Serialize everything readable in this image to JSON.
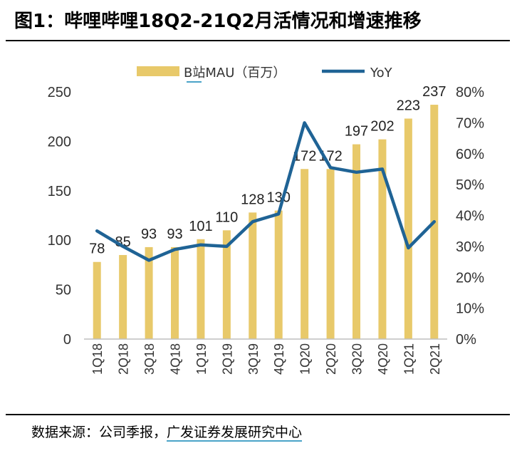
{
  "figure_title": "图1：哔哩哔哩18Q2-21Q2月活情况和增速推移",
  "source": {
    "prefix": "数据来源：公司季报，",
    "company": "广发证券发展研究中心"
  },
  "chart_data": {
    "type": "bar",
    "categories": [
      "1Q18",
      "2Q18",
      "3Q18",
      "4Q18",
      "1Q19",
      "2Q19",
      "3Q19",
      "4Q19",
      "1Q20",
      "2Q20",
      "3Q20",
      "4Q20",
      "1Q21",
      "2Q21"
    ],
    "series": [
      {
        "name": "B站MAU（百万）",
        "type": "bar",
        "axis": "left",
        "values": [
          78,
          85,
          93,
          93,
          101,
          110,
          128,
          130,
          172,
          172,
          197,
          202,
          223,
          237
        ]
      },
      {
        "name": "YoY",
        "type": "line",
        "axis": "right",
        "values": [
          0.35,
          0.3,
          0.255,
          0.29,
          0.305,
          0.3,
          0.38,
          0.405,
          0.7,
          0.555,
          0.54,
          0.55,
          0.295,
          0.38
        ]
      }
    ],
    "y_left": {
      "min": 0,
      "max": 250,
      "ticks": [
        0,
        50,
        100,
        150,
        200,
        250
      ]
    },
    "y_right": {
      "min": 0,
      "max": 0.8,
      "ticks": [
        "0%",
        "10%",
        "20%",
        "30%",
        "40%",
        "50%",
        "60%",
        "70%",
        "80%"
      ]
    },
    "legend": {
      "position": "top-center"
    },
    "grid": false,
    "colors": {
      "bar": "#e8c96a",
      "line": "#1f6395",
      "axis": "#bfbfbf"
    }
  }
}
